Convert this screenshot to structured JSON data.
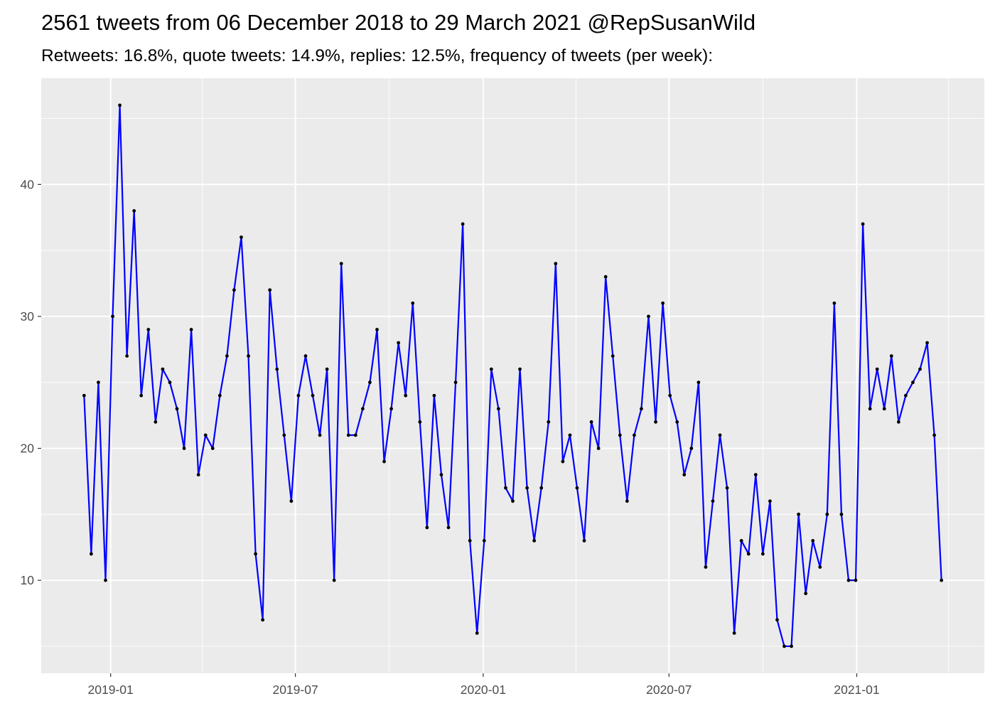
{
  "chart_data": {
    "type": "line",
    "title": "2561 tweets from 06 December 2018 to 29 March 2021 @RepSusanWild",
    "subtitle": "Retweets: 16.8%, quote tweets: 14.9%, replies: 12.5%, frequency of tweets (per week):",
    "xlabel": "",
    "ylabel": "",
    "x_ticks": [
      "2019-01",
      "2019-07",
      "2020-01",
      "2020-07",
      "2021-01"
    ],
    "y_ticks": [
      10,
      20,
      30,
      40
    ],
    "xlim": [
      "2018-10-25",
      "2021-05-06"
    ],
    "ylim": [
      2.95,
      48.05
    ],
    "grid": true,
    "line_color": "#0000ff",
    "point_color": "#000000",
    "panel_background": "#ebebeb",
    "x": [
      "2018-12-06",
      "2018-12-13",
      "2018-12-20",
      "2018-12-27",
      "2019-01-03",
      "2019-01-10",
      "2019-01-17",
      "2019-01-24",
      "2019-01-31",
      "2019-02-07",
      "2019-02-14",
      "2019-02-21",
      "2019-02-28",
      "2019-03-07",
      "2019-03-14",
      "2019-03-21",
      "2019-03-28",
      "2019-04-04",
      "2019-04-11",
      "2019-04-18",
      "2019-04-25",
      "2019-05-02",
      "2019-05-09",
      "2019-05-16",
      "2019-05-23",
      "2019-05-30",
      "2019-06-06",
      "2019-06-13",
      "2019-06-20",
      "2019-06-27",
      "2019-07-04",
      "2019-07-11",
      "2019-07-18",
      "2019-07-25",
      "2019-08-01",
      "2019-08-08",
      "2019-08-15",
      "2019-08-22",
      "2019-08-29",
      "2019-09-05",
      "2019-09-12",
      "2019-09-19",
      "2019-09-26",
      "2019-10-03",
      "2019-10-10",
      "2019-10-17",
      "2019-10-24",
      "2019-10-31",
      "2019-11-07",
      "2019-11-14",
      "2019-11-21",
      "2019-11-28",
      "2019-12-05",
      "2019-12-12",
      "2019-12-19",
      "2019-12-26",
      "2020-01-02",
      "2020-01-09",
      "2020-01-16",
      "2020-01-23",
      "2020-01-30",
      "2020-02-06",
      "2020-02-13",
      "2020-02-20",
      "2020-02-27",
      "2020-03-05",
      "2020-03-12",
      "2020-03-19",
      "2020-03-26",
      "2020-04-02",
      "2020-04-09",
      "2020-04-16",
      "2020-04-23",
      "2020-04-30",
      "2020-05-07",
      "2020-05-14",
      "2020-05-21",
      "2020-05-28",
      "2020-06-04",
      "2020-06-11",
      "2020-06-18",
      "2020-06-25",
      "2020-07-02",
      "2020-07-09",
      "2020-07-16",
      "2020-07-23",
      "2020-07-30",
      "2020-08-06",
      "2020-08-13",
      "2020-08-20",
      "2020-08-27",
      "2020-09-03",
      "2020-09-10",
      "2020-09-17",
      "2020-09-24",
      "2020-10-01",
      "2020-10-08",
      "2020-10-15",
      "2020-10-22",
      "2020-10-29",
      "2020-11-05",
      "2020-11-12",
      "2020-11-19",
      "2020-11-26",
      "2020-12-03",
      "2020-12-10",
      "2020-12-17",
      "2020-12-24",
      "2020-12-31",
      "2021-01-07",
      "2021-01-14",
      "2021-01-21",
      "2021-01-28",
      "2021-02-04",
      "2021-02-11",
      "2021-02-18",
      "2021-02-25",
      "2021-03-04",
      "2021-03-11",
      "2021-03-18",
      "2021-03-25"
    ],
    "values": [
      24,
      12,
      25,
      10,
      30,
      46,
      27,
      38,
      24,
      29,
      22,
      26,
      25,
      23,
      20,
      29,
      18,
      21,
      20,
      24,
      27,
      32,
      36,
      27,
      12,
      7,
      32,
      26,
      21,
      16,
      24,
      27,
      24,
      21,
      26,
      10,
      34,
      21,
      21,
      23,
      25,
      29,
      19,
      23,
      28,
      24,
      31,
      22,
      14,
      24,
      18,
      14,
      25,
      37,
      13,
      6,
      13,
      26,
      23,
      17,
      16,
      26,
      17,
      13,
      17,
      22,
      34,
      19,
      21,
      17,
      13,
      22,
      20,
      33,
      27,
      21,
      16,
      21,
      23,
      30,
      22,
      31,
      24,
      22,
      18,
      20,
      25,
      11,
      16,
      21,
      17,
      6,
      13,
      12,
      18,
      12,
      16,
      7,
      5,
      5,
      15,
      9,
      13,
      11,
      15,
      31,
      15,
      10,
      10,
      37,
      23,
      26,
      23,
      27,
      22,
      24,
      25,
      26,
      28,
      21,
      10
    ]
  }
}
